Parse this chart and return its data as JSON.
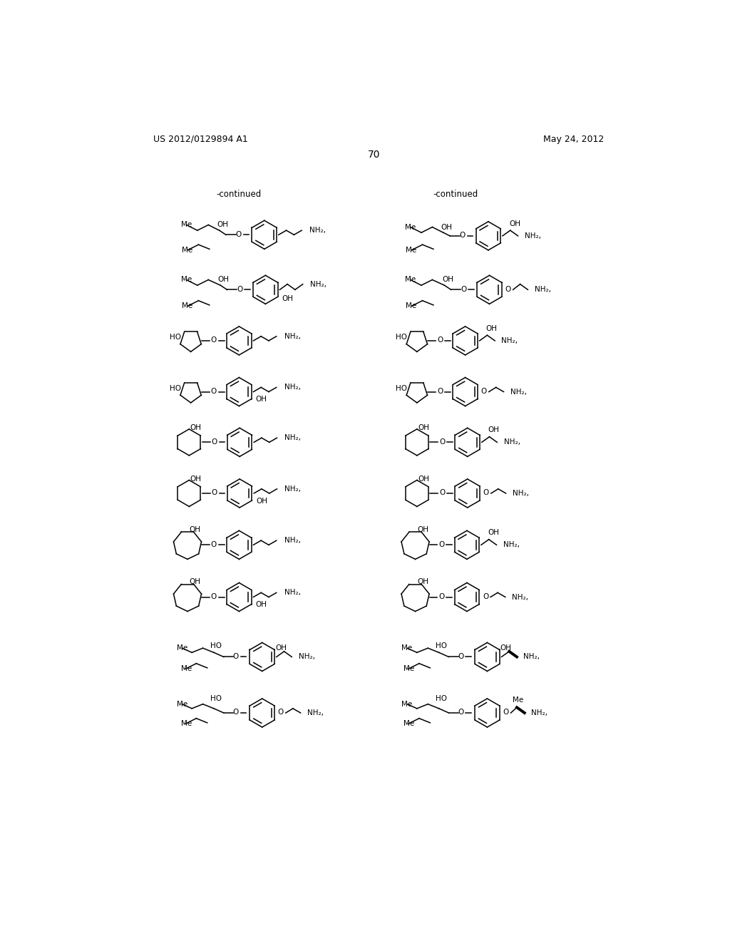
{
  "page_header_left": "US 2012/0129894 A1",
  "page_header_right": "May 24, 2012",
  "page_number": "70",
  "continued_label": "-continued",
  "background_color": "#ffffff",
  "text_color": "#000000",
  "figsize": [
    10.24,
    13.2
  ],
  "dpi": 100
}
